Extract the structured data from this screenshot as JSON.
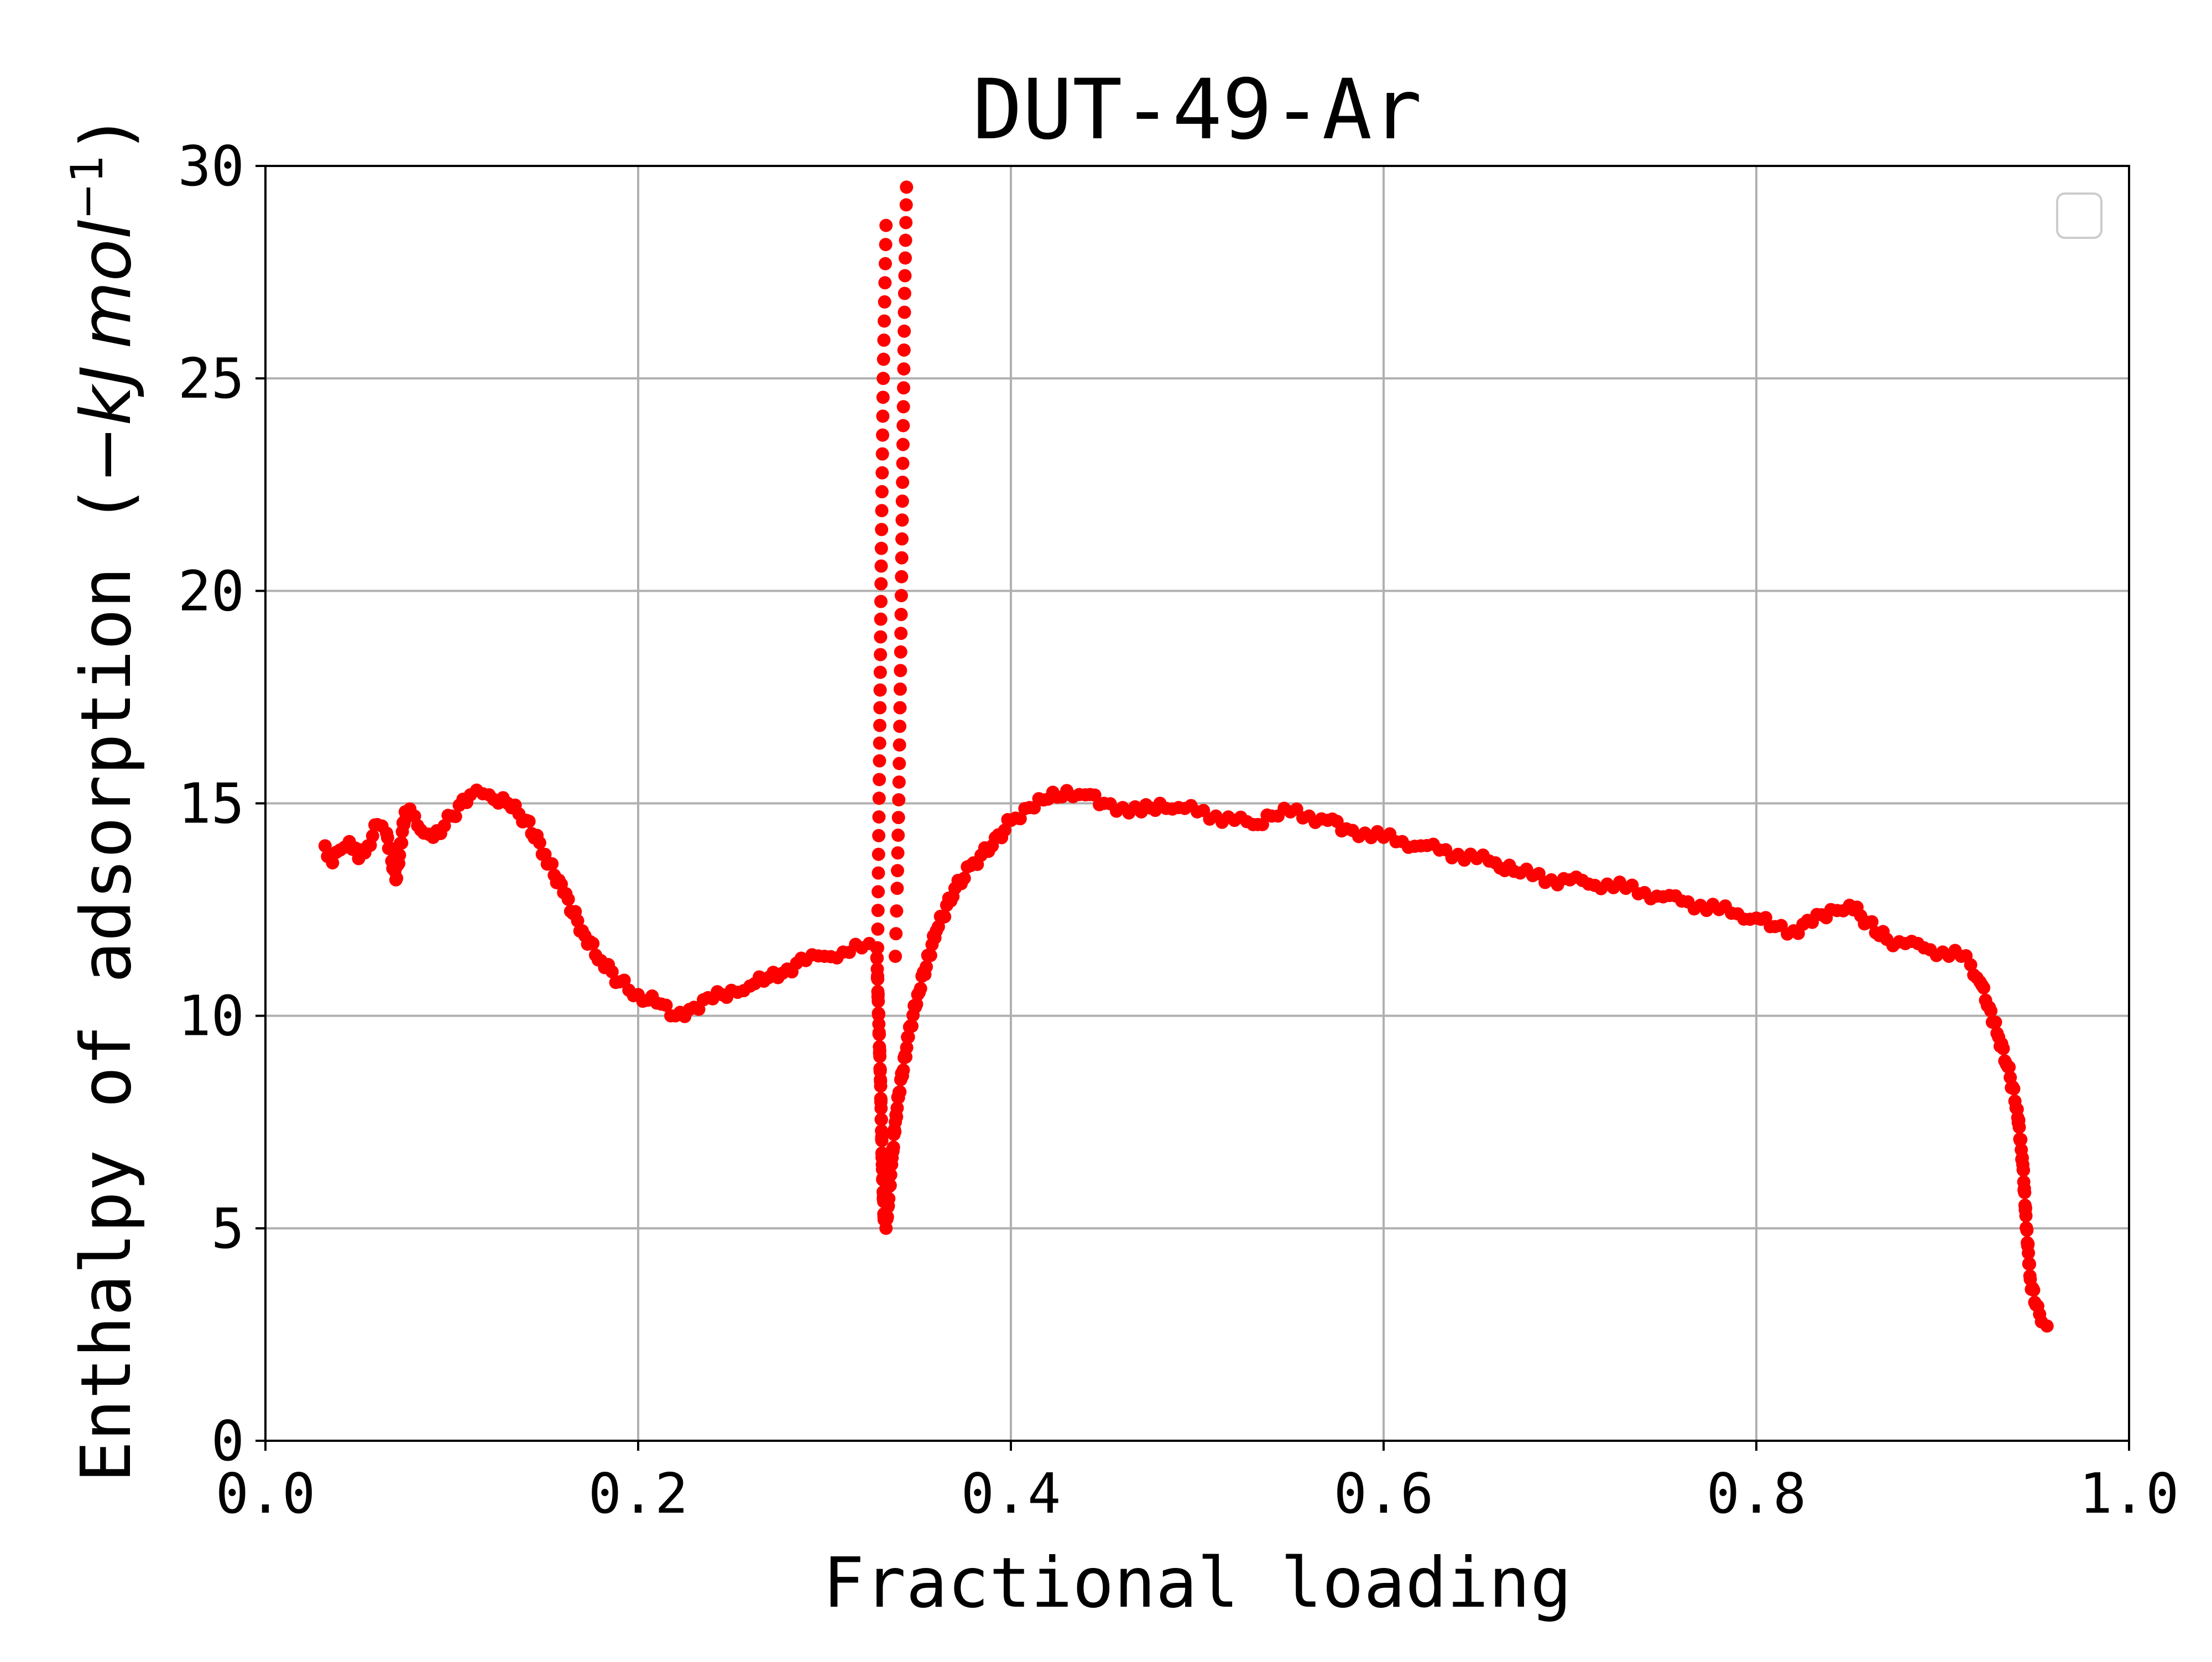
{
  "chart_data": {
    "type": "scatter",
    "title": "DUT-49-Ar",
    "xlabel": "Fractional loading",
    "ylabel": "Enthalpy of adsorption (−kJ mol⁻¹)",
    "ylabel_main": "Enthalpy of adsorption (",
    "ylabel_unit_kj": "−kJ",
    "ylabel_unit_mol": "mol",
    "ylabel_unit_exp": "−1",
    "ylabel_close": ")",
    "xlim": [
      0.0,
      1.0
    ],
    "ylim": [
      0,
      30
    ],
    "xticks": [
      "0.0",
      "0.2",
      "0.4",
      "0.6",
      "0.8",
      "1.0"
    ],
    "yticks": [
      "0",
      "5",
      "10",
      "15",
      "20",
      "25",
      "30"
    ],
    "grid": true,
    "legend": {
      "placement": "top-right",
      "entries": []
    },
    "marker_color": "#ff0000",
    "series": [
      {
        "x": [
          0.032,
          0.036,
          0.04,
          0.045,
          0.05,
          0.055,
          0.06,
          0.065,
          0.07,
          0.075,
          0.08,
          0.085,
          0.09,
          0.1,
          0.11,
          0.12,
          0.13,
          0.14,
          0.15,
          0.16,
          0.17,
          0.18,
          0.19,
          0.2,
          0.21,
          0.22,
          0.23,
          0.24,
          0.25,
          0.26,
          0.27,
          0.28,
          0.29,
          0.3,
          0.31,
          0.32,
          0.328,
          0.33,
          0.331,
          0.332,
          0.333,
          0.334,
          0.336,
          0.338,
          0.34,
          0.345,
          0.35,
          0.36,
          0.37,
          0.38,
          0.39,
          0.4,
          0.41,
          0.42,
          0.43,
          0.44,
          0.45,
          0.46,
          0.47,
          0.48,
          0.49,
          0.5,
          0.51,
          0.52,
          0.53,
          0.54,
          0.55,
          0.56,
          0.57,
          0.58,
          0.59,
          0.6,
          0.61,
          0.62,
          0.63,
          0.64,
          0.65,
          0.66,
          0.67,
          0.68,
          0.69,
          0.7,
          0.71,
          0.72,
          0.73,
          0.74,
          0.75,
          0.76,
          0.77,
          0.78,
          0.79,
          0.8,
          0.81,
          0.82,
          0.83,
          0.84,
          0.85,
          0.86,
          0.87,
          0.88,
          0.89,
          0.9,
          0.91,
          0.915,
          0.92,
          0.925,
          0.93,
          0.935,
          0.94,
          0.943,
          0.945,
          0.947,
          0.95,
          0.953,
          0.956
        ],
        "y": [
          14.0,
          13.6,
          13.9,
          14.1,
          13.7,
          14.0,
          14.5,
          14.3,
          13.2,
          14.8,
          14.7,
          14.3,
          14.2,
          14.7,
          15.2,
          15.2,
          15.0,
          14.6,
          13.8,
          12.9,
          12.0,
          11.3,
          10.8,
          10.5,
          10.3,
          10.0,
          10.2,
          10.4,
          10.6,
          10.7,
          10.9,
          11.1,
          11.3,
          11.4,
          11.5,
          11.6,
          11.6,
          8.5,
          6.5,
          5.2,
          5.0,
          5.5,
          6.5,
          7.5,
          8.2,
          9.5,
          10.5,
          12.0,
          13.0,
          13.6,
          14.0,
          14.6,
          14.9,
          15.1,
          15.3,
          15.2,
          15.0,
          14.9,
          14.8,
          15.0,
          14.9,
          14.8,
          14.7,
          14.6,
          14.5,
          14.7,
          14.8,
          14.7,
          14.6,
          14.4,
          14.3,
          14.2,
          14.1,
          14.0,
          13.9,
          13.8,
          13.7,
          13.6,
          13.4,
          13.3,
          13.2,
          13.2,
          13.1,
          13.1,
          13.0,
          12.9,
          12.8,
          12.7,
          12.6,
          12.5,
          12.4,
          12.3,
          12.1,
          12.0,
          12.2,
          12.5,
          12.6,
          12.2,
          11.8,
          11.7,
          11.6,
          11.5,
          11.4,
          11.2,
          10.8,
          10.2,
          9.5,
          8.8,
          7.8,
          6.5,
          5.0,
          3.8,
          3.2,
          2.8,
          2.7
        ]
      },
      {
        "x": [
          0.3285,
          0.3295,
          0.3305,
          0.3315,
          0.333
        ],
        "y": [
          11.6,
          16.0,
          21.0,
          25.0,
          28.6
        ]
      },
      {
        "x": [
          0.338,
          0.339,
          0.34,
          0.341,
          0.342,
          0.343,
          0.344
        ],
        "y": [
          11.4,
          13.0,
          15.5,
          19.0,
          23.0,
          27.0,
          29.5
        ]
      }
    ]
  }
}
